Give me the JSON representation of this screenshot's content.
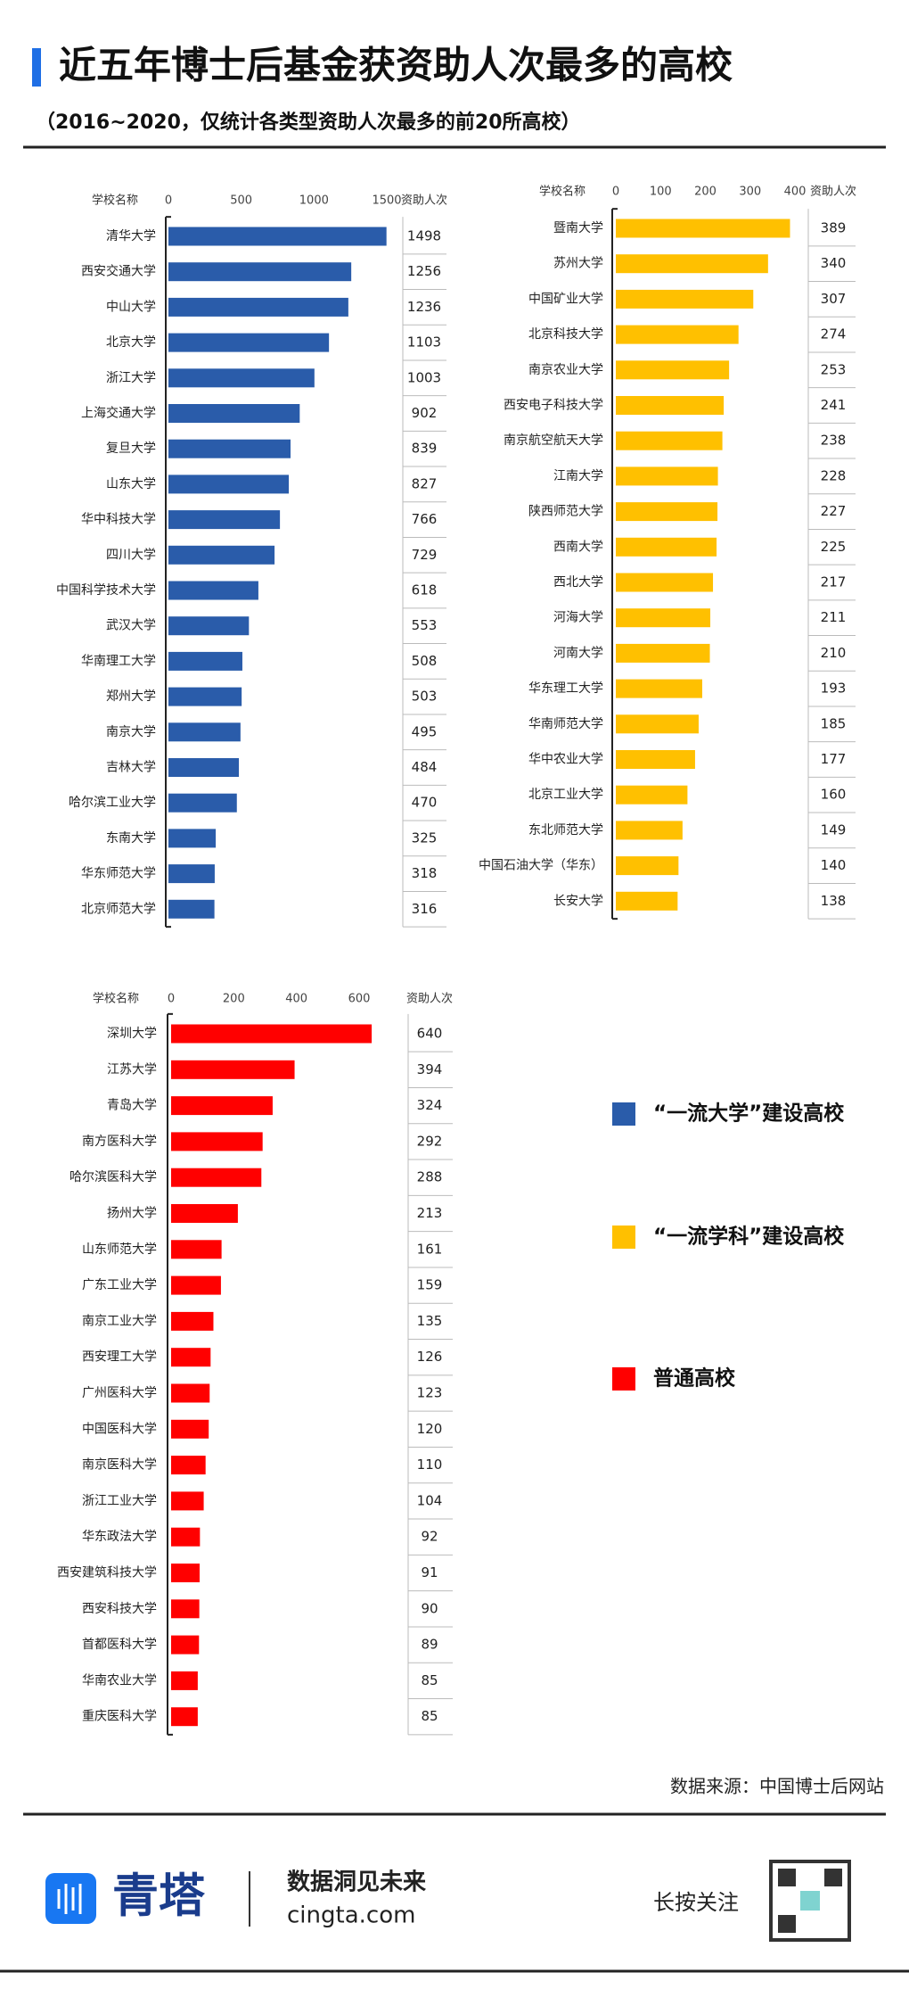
{
  "title": "近五年博士后基金获资助人次最多的高校",
  "subtitle": "（2016~2020，仅统计各类型资助人次最多的前20所高校）",
  "chart_data": [
    {
      "type": "bar",
      "name": "“一流大学”建设高校",
      "category_header": "学校名称",
      "value_header": "资助人次",
      "color": "#2a5caa",
      "categories": [
        "清华大学",
        "西安交通大学",
        "中山大学",
        "北京大学",
        "浙江大学",
        "上海交通大学",
        "复旦大学",
        "山东大学",
        "华中科技大学",
        "四川大学",
        "中国科学技术大学",
        "武汉大学",
        "华南理工大学",
        "郑州大学",
        "南京大学",
        "吉林大学",
        "哈尔滨工业大学",
        "东南大学",
        "华东师范大学",
        "北京师范大学"
      ],
      "values": [
        1498,
        1256,
        1236,
        1103,
        1003,
        902,
        839,
        827,
        766,
        729,
        618,
        553,
        508,
        503,
        495,
        484,
        470,
        325,
        318,
        316
      ],
      "xlim": [
        0,
        1500
      ],
      "xticks": [
        0,
        500,
        1000,
        1500
      ]
    },
    {
      "type": "bar",
      "name": "“一流学科”建设高校",
      "category_header": "学校名称",
      "value_header": "资助人次",
      "color": "#ffc000",
      "categories": [
        "暨南大学",
        "苏州大学",
        "中国矿业大学",
        "北京科技大学",
        "南京农业大学",
        "西安电子科技大学",
        "南京航空航天大学",
        "江南大学",
        "陕西师范大学",
        "西南大学",
        "西北大学",
        "河海大学",
        "河南大学",
        "华东理工大学",
        "华南师范大学",
        "华中农业大学",
        "北京工业大学",
        "东北师范大学",
        "中国石油大学（华东）",
        "长安大学"
      ],
      "values": [
        389,
        340,
        307,
        274,
        253,
        241,
        238,
        228,
        227,
        225,
        217,
        211,
        210,
        193,
        185,
        177,
        160,
        149,
        140,
        138
      ],
      "xlim": [
        0,
        400
      ],
      "xticks": [
        0,
        100,
        200,
        300,
        400
      ]
    },
    {
      "type": "bar",
      "name": "普通高校",
      "category_header": "学校名称",
      "value_header": "资助人次",
      "color": "#ff0000",
      "categories": [
        "深圳大学",
        "江苏大学",
        "青岛大学",
        "南方医科大学",
        "哈尔滨医科大学",
        "扬州大学",
        "山东师范大学",
        "广东工业大学",
        "南京工业大学",
        "西安理工大学",
        "广州医科大学",
        "中国医科大学",
        "南京医科大学",
        "浙江工业大学",
        "华东政法大学",
        "西安建筑科技大学",
        "西安科技大学",
        "首都医科大学",
        "华南农业大学",
        "重庆医科大学"
      ],
      "values": [
        640,
        394,
        324,
        292,
        288,
        213,
        161,
        159,
        135,
        126,
        123,
        120,
        110,
        104,
        92,
        91,
        90,
        89,
        85,
        85
      ],
      "xlim": [
        0,
        600
      ],
      "xticks": [
        0,
        200,
        400,
        600
      ]
    }
  ],
  "source": "数据来源：中国博士后网站",
  "footer": {
    "brand": "青塔",
    "slogan": "数据洞见未来",
    "url": "cingta.com",
    "cta": "长按关注"
  }
}
